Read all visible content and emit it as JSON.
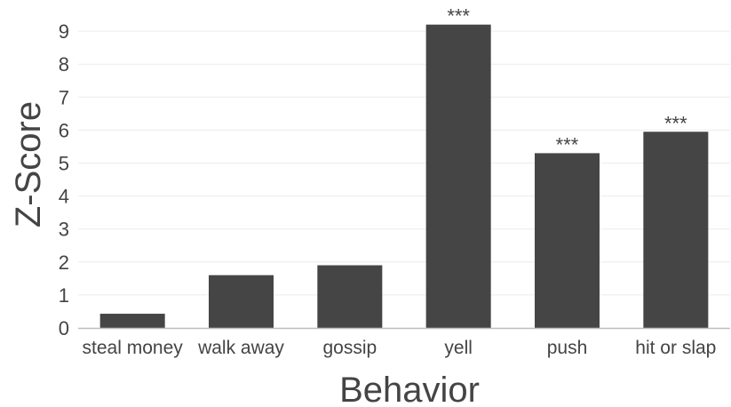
{
  "chart_data": {
    "type": "bar",
    "categories": [
      "steal money",
      "walk away",
      "gossip",
      "yell",
      "push",
      "hit or slap"
    ],
    "values": [
      0.43,
      1.6,
      1.9,
      9.2,
      5.3,
      5.95
    ],
    "annotations": [
      "",
      "",
      "",
      "***",
      "***",
      "***"
    ],
    "xlabel": "Behavior",
    "ylabel": "Z-Score",
    "ylim": [
      0,
      9.5
    ],
    "yticks": [
      0,
      1,
      2,
      3,
      4,
      5,
      6,
      7,
      8,
      9
    ],
    "grid": true,
    "bar_color": "#454545",
    "grid_color": "#ececec",
    "axis_color": "#bdbdbd"
  }
}
